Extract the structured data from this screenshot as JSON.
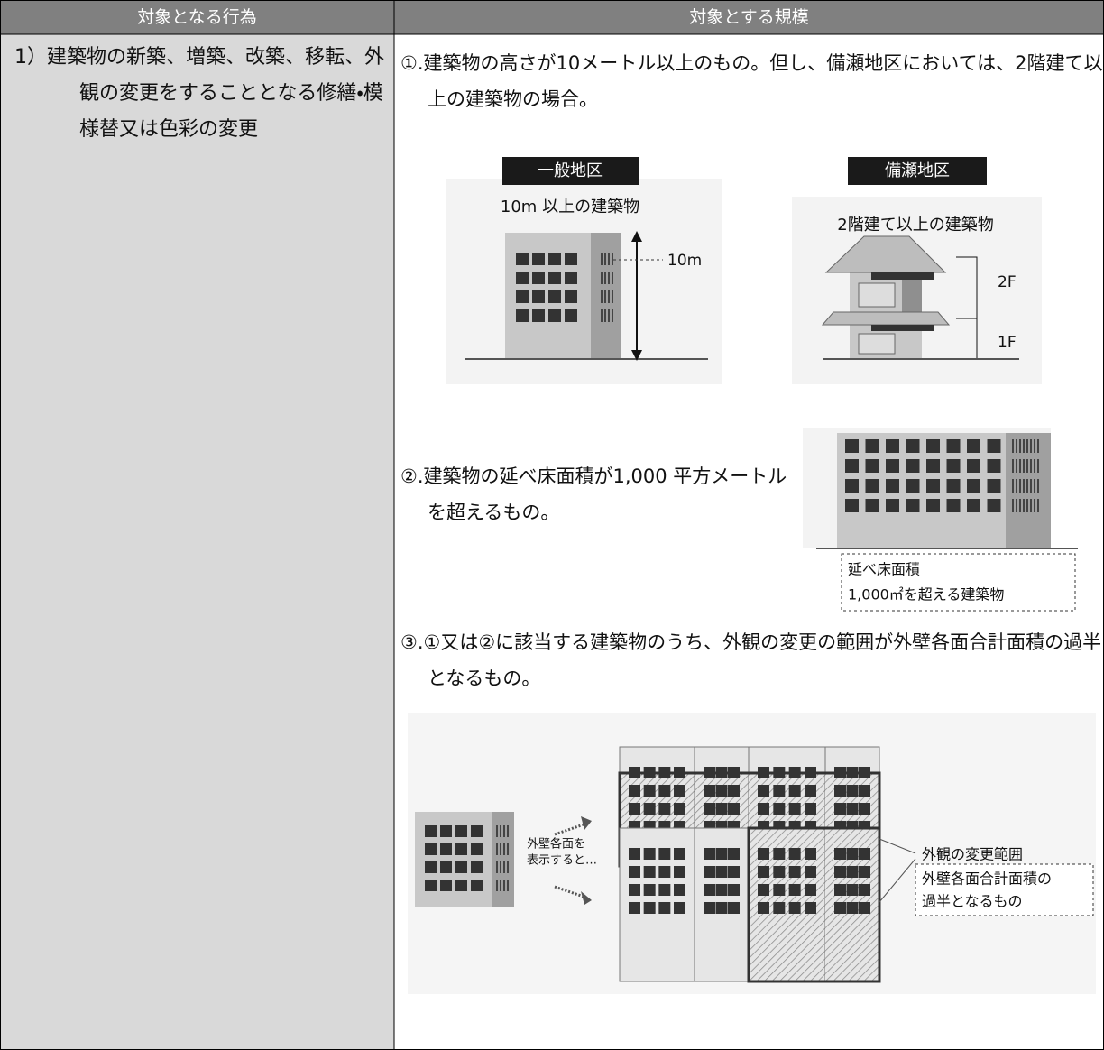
{
  "header": [
    "対象となる行為",
    "対象とする規模"
  ],
  "action": "1）建築物の新築、増築、改築、移転、外観の変更をすることとなる修繕・模様替又は色彩の変更",
  "items": [
    {
      "text": "①.建築物の高さが10メートル以上のもの。但し、備瀬地区においては、2階建て以上の建築物の場合。",
      "figures": [
        {
          "tag": "一般地区",
          "caption": "10m 以上の建築物",
          "height": "10m"
        },
        {
          "tag": "備瀬地区",
          "caption": "2階建て以上の建築物",
          "floors": [
            "2F",
            "1F"
          ]
        }
      ]
    },
    {
      "text": "②.建築物の延べ床面積が1,000 平方メートルを超えるもの。",
      "figure": {
        "labels": [
          "延べ床面積",
          "1,000㎡を超える建築物"
        ]
      }
    },
    {
      "text": "③.①又は②に該当する建築物のうち、外観の変更の範囲が外壁各面合計面積の過半となるもの。",
      "figure": {
        "note": [
          "外壁各面を",
          "表示すると…"
        ],
        "callout": "外観の変更範囲",
        "labels": [
          "外壁各面合計面積の",
          "過半となるもの"
        ]
      }
    }
  ]
}
